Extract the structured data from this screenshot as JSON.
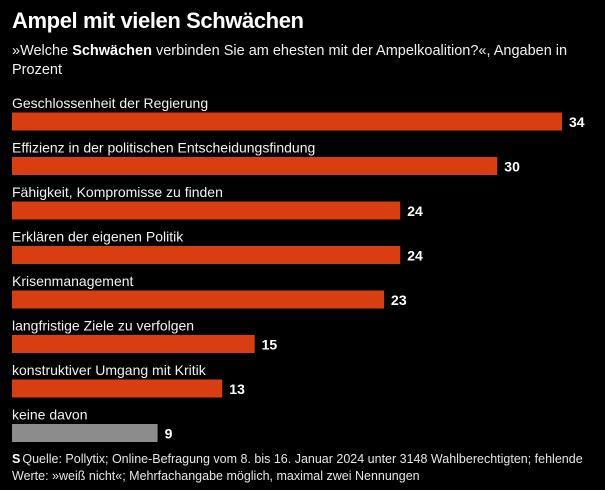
{
  "title": "Ampel mit vielen Schwächen",
  "subtitle": {
    "prefix": "»Welche ",
    "bold": "Schwächen",
    "suffix": " verbinden Sie am ehesten mit der Ampelkoalition?«, Angaben in Prozent"
  },
  "source": {
    "icon": "spiegel-s-icon",
    "icon_glyph": "S",
    "text": "Quelle: Pollytix; Online-Befragung vom 8. bis 16. Januar 2024 unter 3148 Wahlberechtigten; fehlende Werte: »weiß nicht«; Mehrfachangabe möglich, maximal zwei Nennungen"
  },
  "colors": {
    "background": "#000000",
    "bar": "#d93d12",
    "bar_muted": "#8c8c8c",
    "text": "#ffffff"
  },
  "chart_data": {
    "type": "bar",
    "orientation": "horizontal",
    "title": "Ampel mit vielen Schwächen",
    "unit": "Prozent",
    "categories": [
      "Geschlossenheit der Regierung",
      "Effizienz in der politischen Entscheidungsfindung",
      "Fähigkeit, Kompromisse zu finden",
      "Erklären der eigenen Politik",
      "Krisenmanagement",
      "langfristige Ziele zu verfolgen",
      "konstruktiver Umgang mit Kritik",
      "keine davon"
    ],
    "values": [
      34,
      30,
      24,
      24,
      23,
      15,
      13,
      9
    ],
    "muted": [
      false,
      false,
      false,
      false,
      false,
      false,
      false,
      true
    ],
    "xlim": [
      0,
      34
    ]
  }
}
